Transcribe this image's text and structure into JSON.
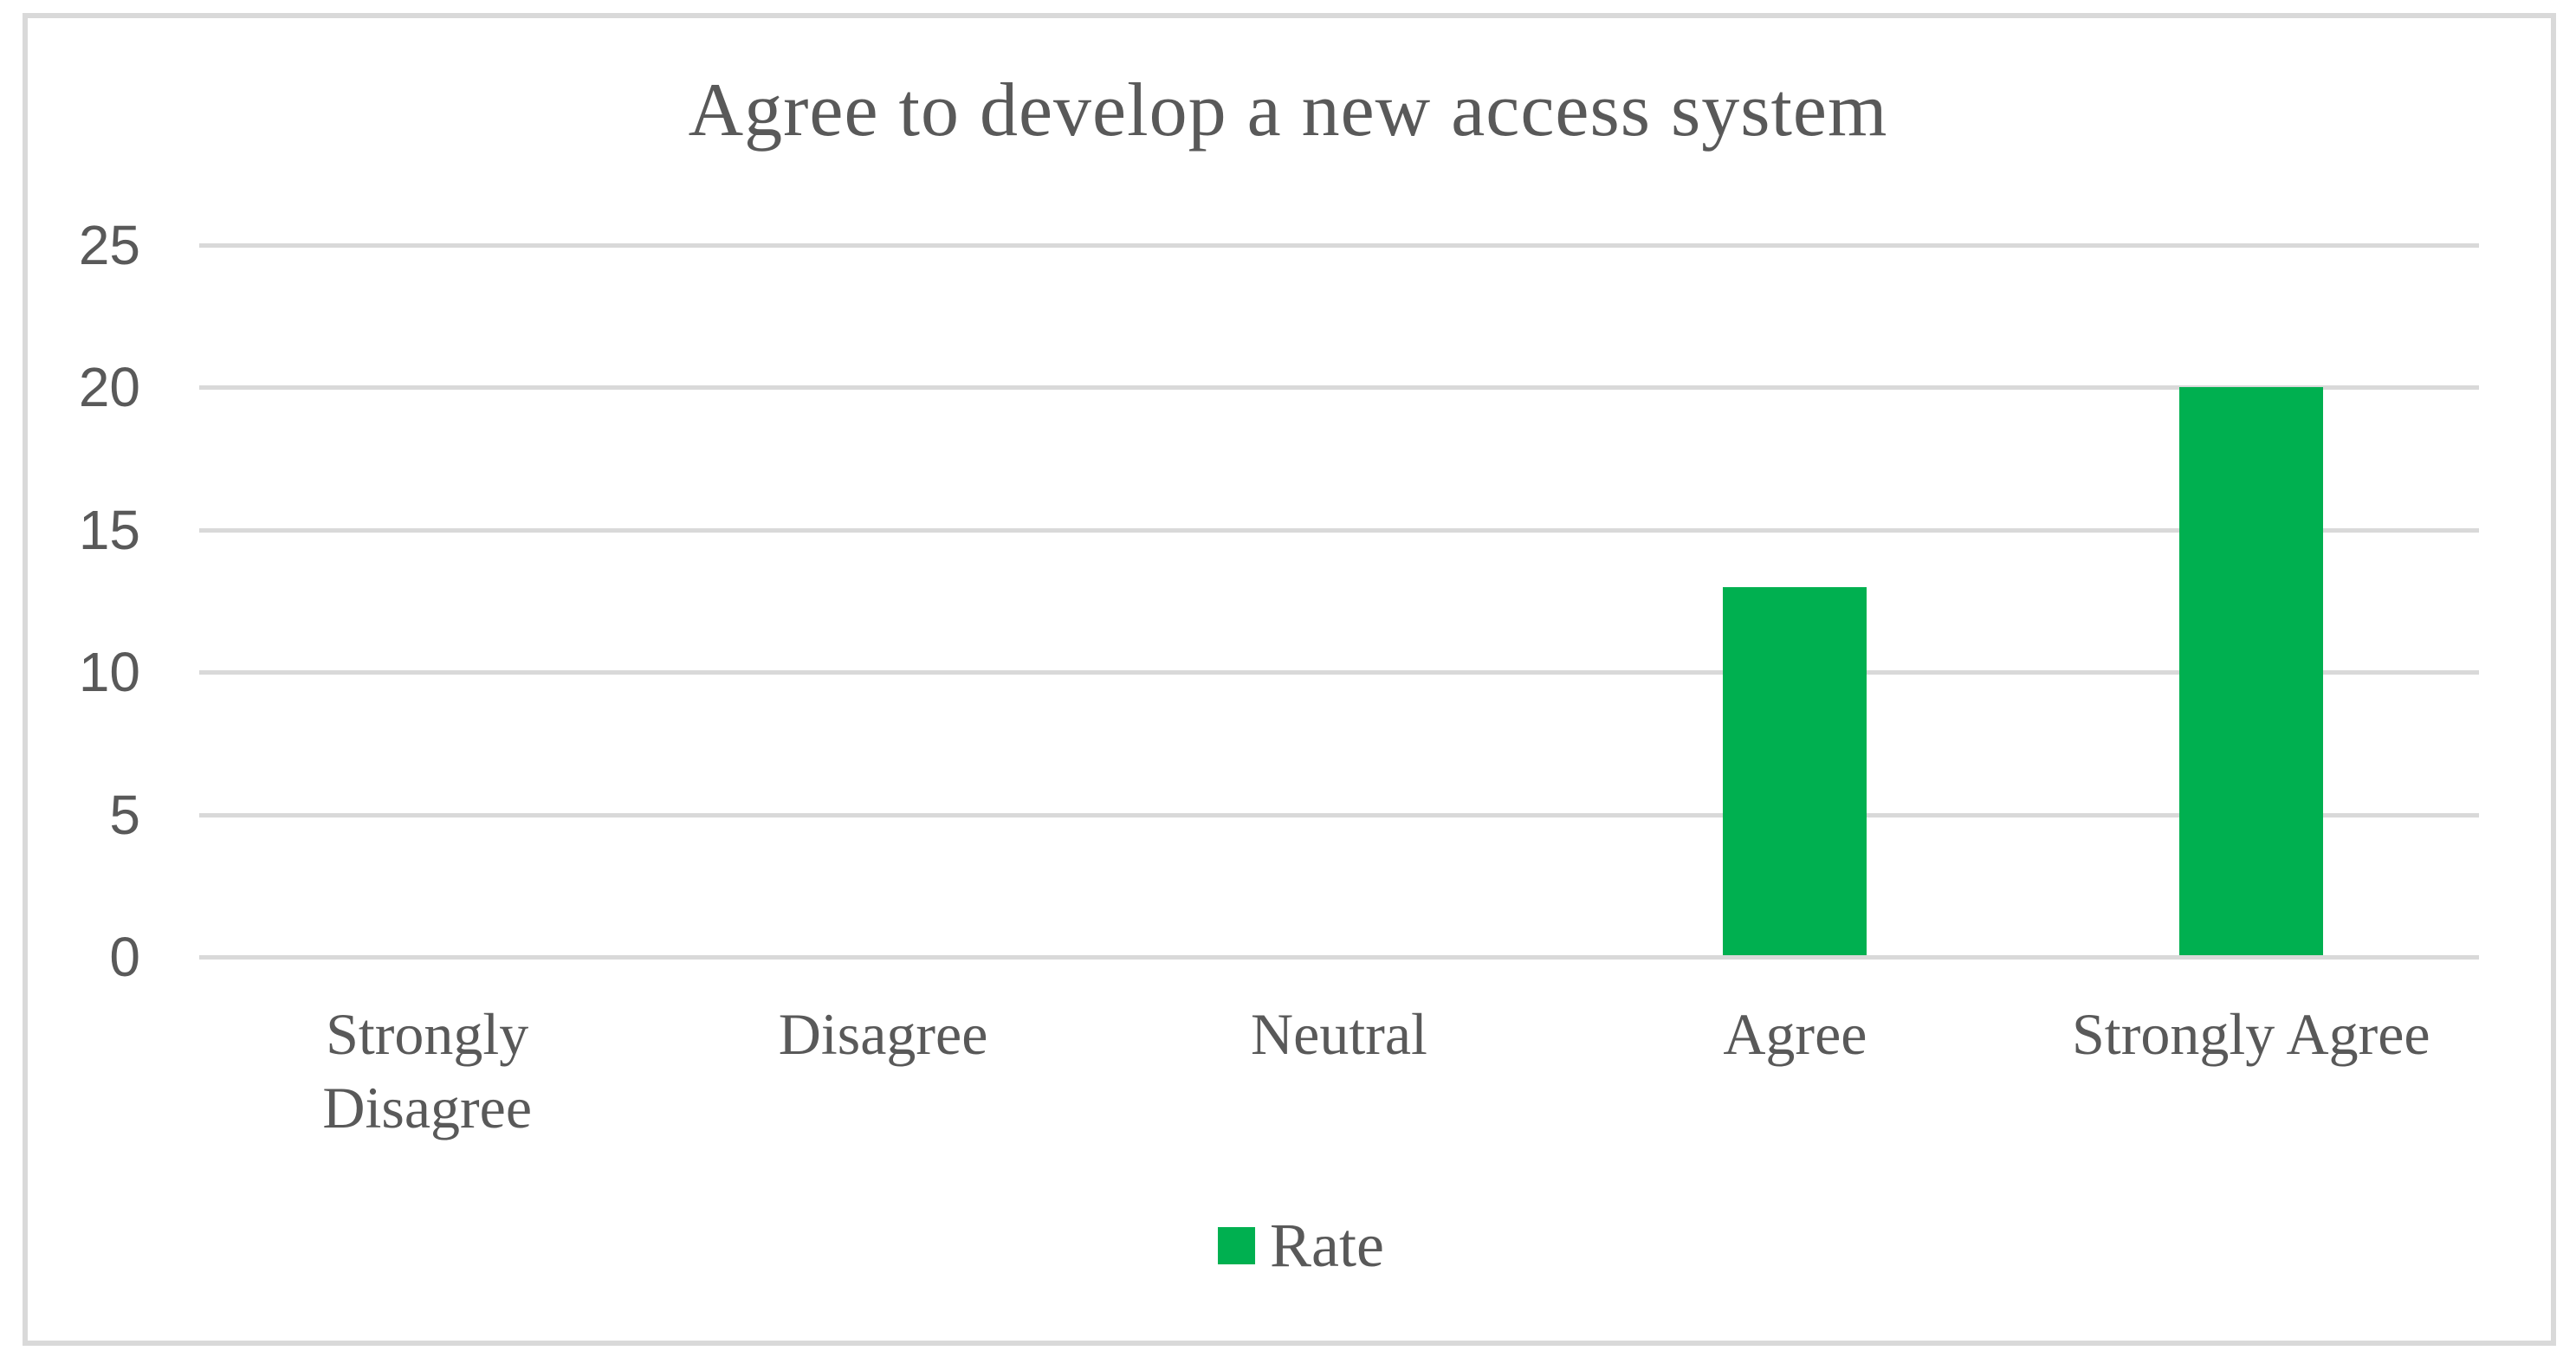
{
  "chart_data": {
    "type": "bar",
    "title": "Agree to develop a new access system",
    "categories": [
      "Strongly Disagree",
      "Disagree",
      "Neutral",
      "Agree",
      "Strongly Agree"
    ],
    "category_display": [
      "Strongly\nDisagree",
      "Disagree",
      "Neutral",
      "Agree",
      "Strongly Agree"
    ],
    "series": [
      {
        "name": "Rate",
        "values": [
          0,
          0,
          0,
          13,
          20
        ]
      }
    ],
    "legend": [
      "Rate"
    ],
    "legend_position": "bottom-center",
    "yticks": [
      0,
      5,
      10,
      15,
      20,
      25
    ],
    "ylim": [
      0,
      25
    ],
    "xlabel": "",
    "ylabel": "",
    "grid": "horizontal",
    "colors": {
      "bar": "#00B050",
      "gridline": "#D9D9D9",
      "border": "#D9D9D9",
      "text": "#595959",
      "background": "#FFFFFF"
    }
  }
}
